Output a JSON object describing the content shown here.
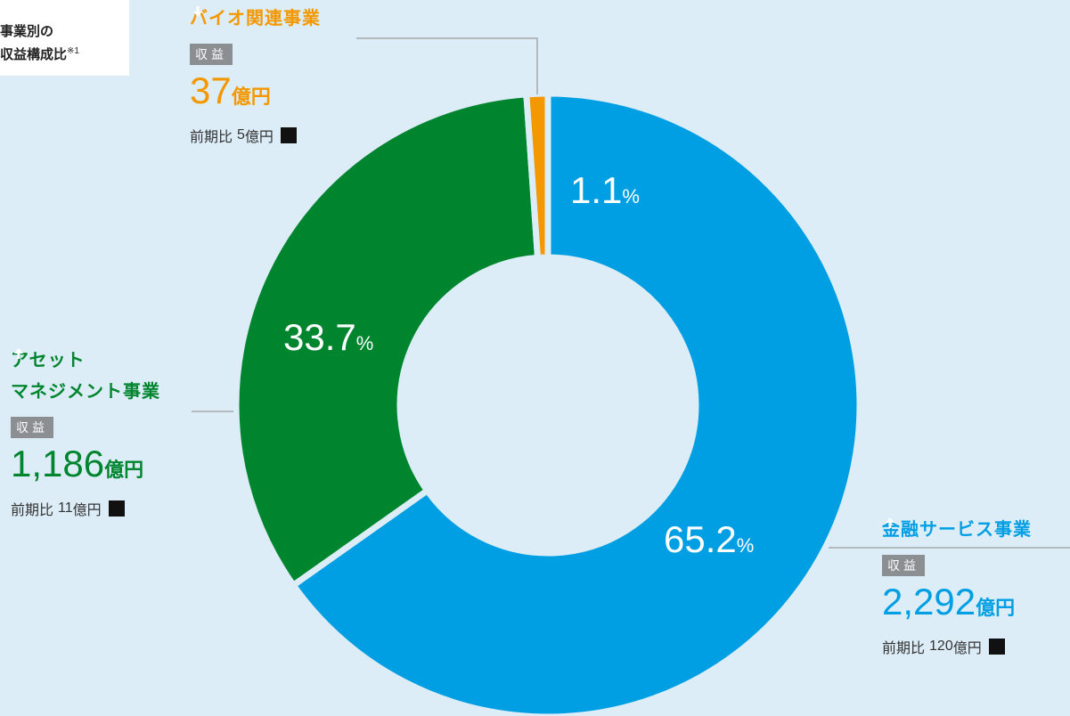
{
  "chart_data": {
    "type": "donut",
    "title_lines": [
      "事業別の",
      "収益構成比"
    ],
    "title_note": "※1",
    "categories": [
      "金融サービス事業",
      "アセット\nマネジメント事業",
      "バイオ関連事業"
    ],
    "values": [
      65.2,
      33.7,
      1.1
    ],
    "colors": [
      "#009fe3",
      "#00852f",
      "#f39800"
    ],
    "percent_unit": "%",
    "revenue_label": "収益",
    "revenue_labels": [
      "2,292",
      "1,186",
      "37"
    ],
    "money_unit": "億円",
    "change_label": "前期比",
    "changes": [
      120,
      11,
      5
    ],
    "change_directions": [
      "up",
      "up",
      "down"
    ]
  }
}
